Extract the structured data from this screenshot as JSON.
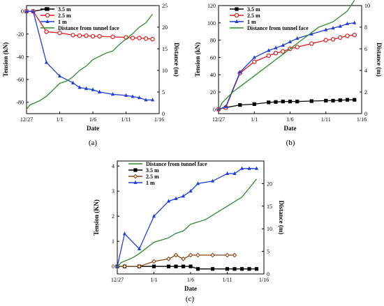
{
  "chart_data": [
    {
      "type": "line",
      "panel_label": "(a)",
      "xlabel": "Date",
      "ylabel": "Tension (kN)",
      "y2label": "Distance (m)",
      "xticks": [
        {
          "label": "12/27",
          "day": 0
        },
        {
          "label": "1/1",
          "day": 5
        },
        {
          "label": "1/6",
          "day": 10
        },
        {
          "label": "1/11",
          "day": 15
        },
        {
          "label": "1/16",
          "day": 20
        }
      ],
      "xlim": [
        0,
        20
      ],
      "ylim": [
        -90,
        5
      ],
      "yticks": [
        0,
        -20,
        -40,
        -60,
        -80
      ],
      "y2lim": [
        0,
        25
      ],
      "y2ticks": [
        0,
        5,
        10,
        15,
        20,
        25
      ],
      "legend": [
        "3.5 m",
        "2.5 m",
        "1 m",
        "Distance from tunnel face"
      ],
      "series": [
        {
          "name": "3.5 m",
          "axis": "left",
          "color": "#000000",
          "marker": "square",
          "x": [
            0,
            1,
            3
          ],
          "y": [
            0,
            0,
            2
          ]
        },
        {
          "name": "2.5 m",
          "axis": "left",
          "color": "#e31a1c",
          "marker": "circle",
          "x": [
            0,
            1,
            3,
            5,
            7,
            8,
            9,
            10,
            11,
            13,
            15,
            16,
            17,
            18,
            19
          ],
          "y": [
            0,
            0,
            -18,
            -19,
            -21,
            -21.5,
            -21.5,
            -22,
            -22,
            -22.5,
            -23,
            -23.5,
            -23.5,
            -24,
            -24.5
          ]
        },
        {
          "name": "1 m",
          "axis": "left",
          "color": "#1f3fd8",
          "marker": "triangle",
          "x": [
            0,
            1,
            3,
            5,
            7,
            8,
            9,
            10,
            11,
            13,
            15,
            16,
            17,
            18,
            19
          ],
          "y": [
            0,
            0,
            -45,
            -57,
            -63,
            -67,
            -68,
            -69,
            -71,
            -73,
            -74,
            -75,
            -76,
            -78,
            -78
          ]
        },
        {
          "name": "Distance from tunnel face",
          "axis": "right",
          "color": "#2e8b2e",
          "marker": "none",
          "x": [
            0,
            0.5,
            2,
            3,
            5,
            6,
            7,
            8,
            9,
            10,
            12,
            13,
            14,
            16,
            17,
            18,
            19
          ],
          "y": [
            1,
            2,
            3,
            4,
            7,
            7.5,
            8.5,
            10,
            11,
            12.5,
            14,
            14.5,
            16,
            18.5,
            20,
            21,
            23
          ]
        }
      ]
    },
    {
      "type": "line",
      "panel_label": "(b)",
      "xlabel": "Date",
      "ylabel": "Tension (kN)",
      "y2label": "Distance (m)",
      "xticks": [
        {
          "label": "12/27",
          "day": 0
        },
        {
          "label": "1/1",
          "day": 5
        },
        {
          "label": "1/6",
          "day": 10
        },
        {
          "label": "1/11",
          "day": 15
        },
        {
          "label": "1/16",
          "day": 20
        }
      ],
      "xlim": [
        0,
        20
      ],
      "ylim": [
        -5,
        120
      ],
      "yticks": [
        0,
        20,
        40,
        60,
        80,
        100,
        120
      ],
      "y2lim": [
        0,
        10
      ],
      "y2ticks": [
        0,
        2,
        4,
        6,
        8,
        10
      ],
      "legend": [
        "3.5 m",
        "2.5 m",
        "1 m",
        "Distance from tunnel face"
      ],
      "series": [
        {
          "name": "3.5 m",
          "axis": "left",
          "color": "#000000",
          "marker": "square",
          "x": [
            0,
            1,
            3,
            5,
            7,
            8,
            9,
            10,
            11,
            13,
            15,
            16,
            17,
            18,
            19
          ],
          "y": [
            0,
            2,
            5,
            6,
            8,
            8.5,
            9,
            9,
            9,
            9.5,
            10,
            10,
            10.5,
            11,
            11
          ]
        },
        {
          "name": "2.5 m",
          "axis": "left",
          "color": "#e31a1c",
          "marker": "circle",
          "x": [
            0,
            1,
            3,
            5,
            7,
            8,
            9,
            10,
            11,
            13,
            15,
            16,
            17,
            18,
            19
          ],
          "y": [
            0,
            2,
            42,
            55,
            62,
            65,
            67,
            70,
            72,
            76,
            80,
            81,
            83,
            85,
            86
          ]
        },
        {
          "name": "1 m",
          "axis": "left",
          "color": "#1f3fd8",
          "marker": "triangle",
          "x": [
            0,
            1,
            3,
            5,
            7,
            8,
            9,
            10,
            11,
            13,
            15,
            16,
            17,
            18,
            19
          ],
          "y": [
            0,
            3,
            43,
            60,
            68,
            71,
            74,
            78,
            82,
            87,
            92,
            94,
            96,
            99,
            100
          ]
        },
        {
          "name": "Distance from tunnel face",
          "axis": "right",
          "color": "#2e8b2e",
          "marker": "none",
          "x": [
            0,
            0.5,
            2,
            3,
            5,
            6,
            7,
            8,
            9,
            10,
            12,
            13,
            14,
            16,
            17,
            18,
            19
          ],
          "y": [
            0.3,
            1,
            2,
            2.5,
            3.5,
            4,
            4.5,
            5,
            5.5,
            6,
            7,
            7.5,
            8,
            8.5,
            9,
            9.5,
            10.5
          ]
        }
      ]
    },
    {
      "type": "line",
      "panel_label": "(c)",
      "xlabel": "Date",
      "ylabel": "Tension (KN)",
      "y2label": "Distance (m)",
      "xticks": [
        {
          "label": "12/27",
          "day": 0
        },
        {
          "label": "1/1",
          "day": 5
        },
        {
          "label": "1/6",
          "day": 10
        },
        {
          "label": "1/11",
          "day": 15
        },
        {
          "label": "1/16",
          "day": 20
        }
      ],
      "xlim": [
        0,
        20
      ],
      "ylim": [
        -0.3,
        4.2
      ],
      "yticks": [
        0,
        1,
        2,
        3,
        4
      ],
      "y2lim": [
        0,
        25
      ],
      "y2ticks": [
        0,
        5,
        10,
        15,
        20
      ],
      "legend": [
        "Distance from tunnel face",
        "3.5 m",
        "2.5 m",
        "1 m"
      ],
      "series": [
        {
          "name": "3.5 m",
          "axis": "left",
          "color": "#000000",
          "marker": "square",
          "x": [
            0,
            1,
            3,
            5,
            7,
            8,
            9,
            10,
            11,
            13,
            15,
            16,
            17,
            18,
            19
          ],
          "y": [
            0,
            0,
            0,
            0,
            0,
            0,
            0,
            0,
            -0.1,
            -0.1,
            -0.1,
            -0.1,
            -0.1,
            -0.1,
            -0.1
          ]
        },
        {
          "name": "2.5 m",
          "axis": "left",
          "color": "#8b4513",
          "marker": "diamond",
          "x": [
            0,
            1,
            3,
            5,
            7,
            8,
            9,
            10,
            11,
            13,
            15,
            16
          ],
          "y": [
            0,
            0,
            0,
            0.2,
            0.3,
            0.45,
            0.3,
            0.45,
            0.45,
            0.45,
            0.45,
            0.45
          ]
        },
        {
          "name": "1 m",
          "axis": "left",
          "color": "#1f3fd8",
          "marker": "triangle",
          "x": [
            0,
            1,
            3,
            5,
            7,
            8,
            9,
            10,
            11,
            13,
            15,
            16,
            17,
            18,
            19
          ],
          "y": [
            0,
            1.3,
            0.7,
            2.0,
            2.6,
            2.7,
            2.8,
            3.0,
            3.3,
            3.4,
            3.7,
            3.7,
            3.9,
            3.9,
            3.9
          ]
        },
        {
          "name": "Distance from tunnel face",
          "axis": "right",
          "color": "#2e8b2e",
          "marker": "none",
          "x": [
            0,
            0.5,
            2,
            3,
            5,
            6,
            7,
            8,
            9,
            10,
            12,
            13,
            14,
            16,
            17,
            18,
            19
          ],
          "y": [
            1.5,
            2.5,
            3.5,
            4.5,
            7,
            7.5,
            8,
            9,
            9.5,
            11,
            12,
            13,
            14,
            16,
            17,
            19,
            21
          ]
        }
      ]
    }
  ]
}
